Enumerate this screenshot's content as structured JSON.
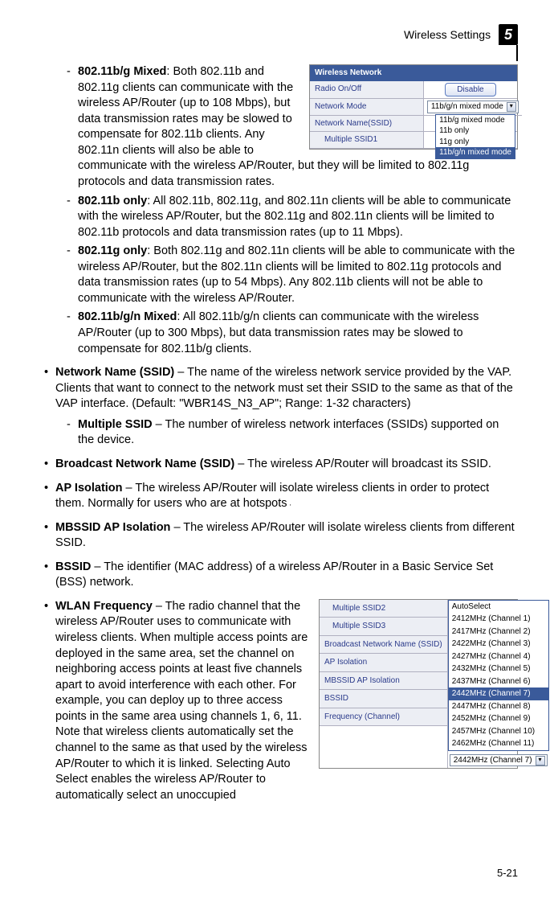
{
  "header": {
    "section": "Wireless Settings",
    "chapter": "5"
  },
  "footer": {
    "page": "5-21"
  },
  "panel1": {
    "title": "Wireless Network",
    "rows": {
      "radio_label": "Radio On/Off",
      "radio_button": "Disable",
      "mode_label": "Network Mode",
      "mode_value": "11b/g/n mixed mode",
      "ssid_label": "Network Name(SSID)",
      "multi_ssid1": "Multiple SSID1"
    },
    "dd_options": [
      "11b/g mixed mode",
      "11b only",
      "11g only",
      "11b/g/n mixed mode"
    ],
    "dd_selected": "11b/g/n mixed mode"
  },
  "panel2": {
    "left": {
      "multi2": "Multiple SSID2",
      "multi3": "Multiple SSID3",
      "broadcast": "Broadcast Network Name (SSID)",
      "apiso": "AP Isolation",
      "mbssid": "MBSSID AP Isolation",
      "bssid": "BSSID",
      "freq": "Frequency (Channel)"
    },
    "dd_options": [
      "AutoSelect",
      "2412MHz (Channel 1)",
      "2417MHz (Channel 2)",
      "2422MHz (Channel 3)",
      "2427MHz (Channel 4)",
      "2432MHz (Channel 5)",
      "2437MHz (Channel 6)",
      "2442MHz (Channel 7)",
      "2447MHz (Channel 8)",
      "2452MHz (Channel 9)",
      "2457MHz (Channel 10)",
      "2462MHz (Channel 11)"
    ],
    "dd_selected_index": 7,
    "closed_value": "2442MHz (Channel 7)"
  },
  "body": {
    "mode_items": [
      {
        "title": "802.11b/g Mixed",
        "text": ": Both 802.11b and 802.11g clients can communicate with the wireless AP/Router (up to 108 Mbps), but data transmission rates may be slowed to compensate for 802.11b clients. Any 802.11n clients will also be able to communicate with the wireless AP/Router, but they will be limited to 802.11g protocols and data transmission rates."
      },
      {
        "title": "802.11b only",
        "text": ": All 802.11b, 802.11g, and 802.11n clients will be able to communicate with the wireless AP/Router, but the 802.11g and 802.11n clients will be limited to 802.11b protocols and data transmission rates (up to 11 Mbps)."
      },
      {
        "title": "802.11g only",
        "text": ": Both 802.11g and 802.11n clients will be able to communicate with the wireless AP/Router, but the 802.11n clients will be limited to 802.11g protocols and data transmission rates (up to 54 Mbps). Any 802.11b clients will not be able to communicate with the wireless AP/Router."
      },
      {
        "title": "802.11b/g/n Mixed",
        "text": ": All 802.11b/g/n clients can communicate with the wireless AP/Router (up to 300 Mbps), but data transmission rates may be slowed to compensate for 802.11b/g clients."
      }
    ],
    "ssid": {
      "title": "Network Name (SSID)",
      "text": " – The name of the wireless network service provided by the VAP. Clients that want to connect to the network must set their SSID to the same as that of the VAP interface. (Default: \"WBR14S_N3_AP\"; Range: 1-32 characters)",
      "sub_title": "Multiple SSID",
      "sub_text": " – The number of wireless network interfaces (SSIDs) supported on the device."
    },
    "broadcast": {
      "title": "Broadcast Network Name (SSID)",
      "text": " – The wireless AP/Router will broadcast its SSID."
    },
    "apiso": {
      "title": "AP Isolation",
      "text_a": " – The wireless AP/Router will isolate wireless clients in order to protect them. Normally for users who are at hotspots",
      "text_b": "."
    },
    "mbssid": {
      "title": "MBSSID AP Isolation",
      "text": " – The wireless AP/Router will isolate wireless clients from different SSID."
    },
    "bssid": {
      "title": "BSSID",
      "text": " – The identifier (MAC address) of a wireless AP/Router in a Basic Service Set (BSS) network."
    },
    "wlan": {
      "title": "WLAN Frequency",
      "text": " – The radio channel that the wireless AP/Router uses to communicate with wireless clients. When multiple access points are deployed in the same area, set the channel on neighboring access points at least five channels apart to avoid interference with each other. For example, you can deploy up to three access points in the same area using channels 1, 6, 11. Note that wireless clients automatically set the channel to the same as that used by the wireless AP/Router to which it is linked. Selecting Auto Select enables the wireless AP/Router to automatically select an unoccupied"
    }
  }
}
